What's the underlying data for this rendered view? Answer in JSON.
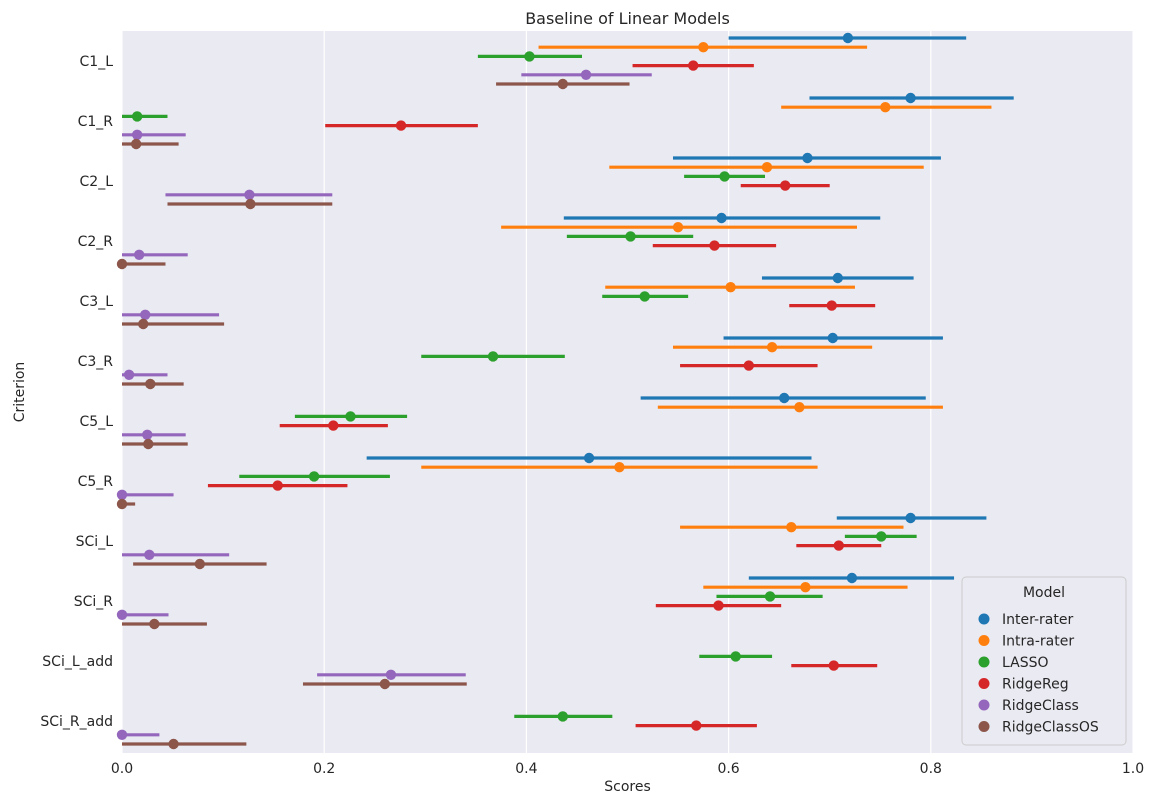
{
  "chart_data": {
    "type": "scatter",
    "title": "Baseline of Linear Models",
    "xlabel": "Scores",
    "ylabel": "Criterion",
    "xlim": [
      0.0,
      1.0
    ],
    "xticks": [
      "0.0",
      "0.2",
      "0.4",
      "0.6",
      "0.8",
      "1.0"
    ],
    "xtick_values": [
      0.0,
      0.2,
      0.4,
      0.6,
      0.8,
      1.0
    ],
    "grid": true,
    "legend_title": "Model",
    "legend_position": "lower-right",
    "categories": [
      "C1_L",
      "C1_R",
      "C2_L",
      "C2_R",
      "C3_L",
      "C3_R",
      "C5_L",
      "C5_R",
      "SCi_L",
      "SCi_R",
      "SCi_L_add",
      "SCi_R_add"
    ],
    "series": [
      {
        "name": "Inter-rater",
        "color": "#1f77b4",
        "points": [
          {
            "mean": 0.718,
            "low": 0.6,
            "high": 0.835
          },
          {
            "mean": 0.78,
            "low": 0.68,
            "high": 0.882
          },
          {
            "mean": 0.678,
            "low": 0.545,
            "high": 0.81
          },
          {
            "mean": 0.593,
            "low": 0.437,
            "high": 0.75
          },
          {
            "mean": 0.708,
            "low": 0.633,
            "high": 0.783
          },
          {
            "mean": 0.703,
            "low": 0.595,
            "high": 0.812
          },
          {
            "mean": 0.655,
            "low": 0.513,
            "high": 0.795
          },
          {
            "mean": 0.462,
            "low": 0.242,
            "high": 0.682
          },
          {
            "mean": 0.78,
            "low": 0.707,
            "high": 0.855
          },
          {
            "mean": 0.722,
            "low": 0.62,
            "high": 0.823
          },
          null,
          null
        ]
      },
      {
        "name": "Intra-rater",
        "color": "#ff7f0e",
        "points": [
          {
            "mean": 0.575,
            "low": 0.412,
            "high": 0.737
          },
          {
            "mean": 0.755,
            "low": 0.652,
            "high": 0.86
          },
          {
            "mean": 0.638,
            "low": 0.482,
            "high": 0.793
          },
          {
            "mean": 0.55,
            "low": 0.375,
            "high": 0.727
          },
          {
            "mean": 0.602,
            "low": 0.478,
            "high": 0.725
          },
          {
            "mean": 0.643,
            "low": 0.545,
            "high": 0.742
          },
          {
            "mean": 0.67,
            "low": 0.53,
            "high": 0.812
          },
          {
            "mean": 0.492,
            "low": 0.296,
            "high": 0.688
          },
          {
            "mean": 0.662,
            "low": 0.552,
            "high": 0.773
          },
          {
            "mean": 0.676,
            "low": 0.575,
            "high": 0.777
          },
          null,
          null
        ]
      },
      {
        "name": "LASSO",
        "color": "#2ca02c",
        "points": [
          {
            "mean": 0.403,
            "low": 0.352,
            "high": 0.455
          },
          {
            "mean": 0.015,
            "low": 0.0,
            "high": 0.045
          },
          {
            "mean": 0.596,
            "low": 0.556,
            "high": 0.636
          },
          {
            "mean": 0.503,
            "low": 0.44,
            "high": 0.565
          },
          {
            "mean": 0.517,
            "low": 0.475,
            "high": 0.56
          },
          {
            "mean": 0.367,
            "low": 0.296,
            "high": 0.438
          },
          {
            "mean": 0.226,
            "low": 0.171,
            "high": 0.282
          },
          {
            "mean": 0.19,
            "low": 0.116,
            "high": 0.265
          },
          {
            "mean": 0.751,
            "low": 0.715,
            "high": 0.786
          },
          {
            "mean": 0.641,
            "low": 0.588,
            "high": 0.693
          },
          {
            "mean": 0.607,
            "low": 0.571,
            "high": 0.643
          },
          {
            "mean": 0.436,
            "low": 0.388,
            "high": 0.485
          }
        ]
      },
      {
        "name": "RidgeReg",
        "color": "#d62728",
        "points": [
          {
            "mean": 0.565,
            "low": 0.505,
            "high": 0.625
          },
          {
            "mean": 0.276,
            "low": 0.201,
            "high": 0.352
          },
          {
            "mean": 0.656,
            "low": 0.612,
            "high": 0.7
          },
          {
            "mean": 0.586,
            "low": 0.525,
            "high": 0.647
          },
          {
            "mean": 0.702,
            "low": 0.66,
            "high": 0.745
          },
          {
            "mean": 0.62,
            "low": 0.552,
            "high": 0.688
          },
          {
            "mean": 0.209,
            "low": 0.156,
            "high": 0.263
          },
          {
            "mean": 0.154,
            "low": 0.085,
            "high": 0.223
          },
          {
            "mean": 0.709,
            "low": 0.667,
            "high": 0.751
          },
          {
            "mean": 0.59,
            "low": 0.528,
            "high": 0.652
          },
          {
            "mean": 0.704,
            "low": 0.662,
            "high": 0.747
          },
          {
            "mean": 0.568,
            "low": 0.508,
            "high": 0.628
          }
        ]
      },
      {
        "name": "RidgeClass",
        "color": "#9467bd",
        "points": [
          {
            "mean": 0.459,
            "low": 0.395,
            "high": 0.524
          },
          {
            "mean": 0.015,
            "low": 0.0,
            "high": 0.063
          },
          {
            "mean": 0.126,
            "low": 0.043,
            "high": 0.208
          },
          {
            "mean": 0.017,
            "low": 0.0,
            "high": 0.065
          },
          {
            "mean": 0.023,
            "low": 0.0,
            "high": 0.096
          },
          {
            "mean": 0.007,
            "low": 0.0,
            "high": 0.045
          },
          {
            "mean": 0.025,
            "low": 0.0,
            "high": 0.063
          },
          {
            "mean": 0.0,
            "low": 0.0,
            "high": 0.051
          },
          {
            "mean": 0.027,
            "low": 0.0,
            "high": 0.106
          },
          {
            "mean": 0.0,
            "low": 0.0,
            "high": 0.046
          },
          {
            "mean": 0.266,
            "low": 0.193,
            "high": 0.34
          },
          {
            "mean": 0.0,
            "low": 0.0,
            "high": 0.037
          }
        ]
      },
      {
        "name": "RidgeClassOS",
        "color": "#8c564b",
        "points": [
          {
            "mean": 0.436,
            "low": 0.37,
            "high": 0.502
          },
          {
            "mean": 0.014,
            "low": 0.0,
            "high": 0.056
          },
          {
            "mean": 0.127,
            "low": 0.045,
            "high": 0.208
          },
          {
            "mean": 0.0,
            "low": 0.0,
            "high": 0.043
          },
          {
            "mean": 0.021,
            "low": 0.0,
            "high": 0.101
          },
          {
            "mean": 0.028,
            "low": 0.0,
            "high": 0.061
          },
          {
            "mean": 0.026,
            "low": 0.0,
            "high": 0.065
          },
          {
            "mean": 0.0,
            "low": 0.0,
            "high": 0.013
          },
          {
            "mean": 0.077,
            "low": 0.011,
            "high": 0.143
          },
          {
            "mean": 0.032,
            "low": 0.0,
            "high": 0.084
          },
          {
            "mean": 0.26,
            "low": 0.179,
            "high": 0.341
          },
          {
            "mean": 0.051,
            "low": 0.0,
            "high": 0.123
          }
        ]
      }
    ]
  }
}
